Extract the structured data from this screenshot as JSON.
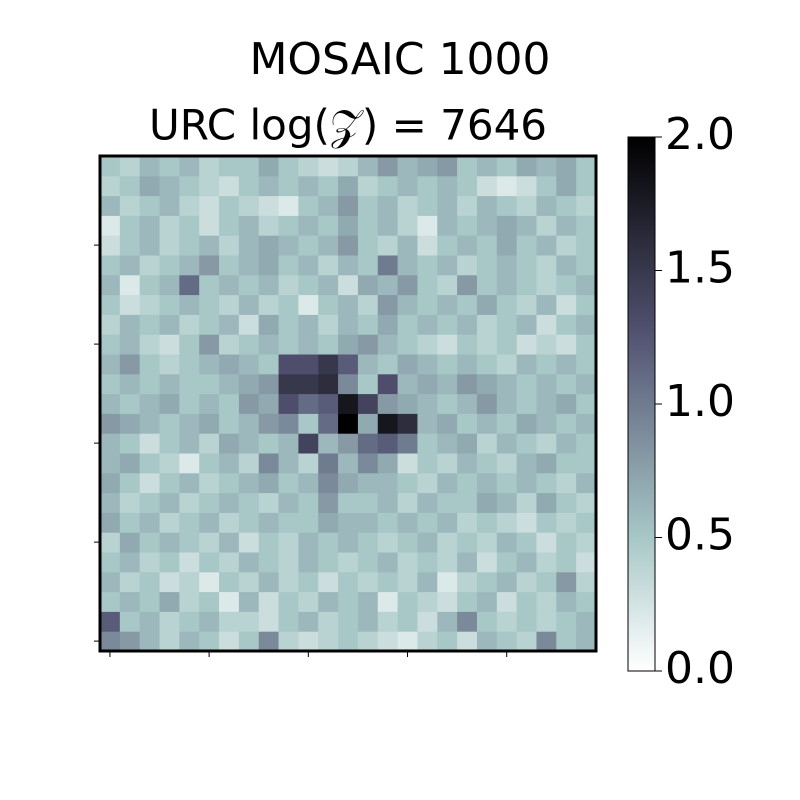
{
  "chart_data": {
    "type": "heatmap",
    "title": "MOSAIC 1000",
    "subtitle": "URC log(𝒵) = 7646",
    "colormap": "bone_r",
    "origin": "lower",
    "xlim": [
      -0.5,
      24.5
    ],
    "ylim": [
      -0.5,
      24.5
    ],
    "xticks": [
      0,
      5,
      10,
      15,
      20
    ],
    "yticks": [
      0,
      5,
      10,
      15,
      20
    ],
    "clim": [
      0,
      2
    ],
    "cticks": [
      {
        "value": 0,
        "label": "0.0"
      },
      {
        "value": 0.5,
        "label": "0.5"
      },
      {
        "value": 1,
        "label": "1.0"
      },
      {
        "value": 1.5,
        "label": "1.5"
      },
      {
        "value": 2,
        "label": "2.0"
      }
    ],
    "z": [
      [
        0.9,
        0.8,
        0.6,
        0.4,
        0.6,
        0.5,
        0.3,
        0.5,
        0.9,
        0.4,
        0.3,
        0.4,
        0.5,
        0.4,
        0.3,
        0.2,
        0.4,
        0.5,
        0.3,
        0.6,
        0.5,
        0.4,
        0.9,
        0.5,
        0.6
      ],
      [
        1.2,
        0.5,
        0.6,
        0.4,
        0.5,
        0.6,
        0.4,
        0.4,
        0.3,
        0.5,
        0.6,
        0.4,
        0.5,
        0.6,
        0.4,
        0.5,
        0.3,
        0.6,
        0.9,
        0.5,
        0.4,
        0.5,
        0.4,
        0.5,
        0.6
      ],
      [
        0.5,
        0.6,
        0.5,
        0.7,
        0.4,
        0.5,
        0.2,
        0.6,
        0.3,
        0.5,
        0.4,
        0.6,
        0.5,
        0.6,
        0.2,
        0.5,
        0.4,
        0.3,
        0.5,
        0.6,
        0.3,
        0.5,
        0.4,
        0.6,
        0.5
      ],
      [
        0.6,
        0.4,
        0.5,
        0.3,
        0.4,
        0.2,
        0.5,
        0.4,
        0.6,
        0.4,
        0.5,
        0.3,
        0.5,
        0.4,
        0.5,
        0.4,
        0.6,
        0.2,
        0.4,
        0.5,
        0.6,
        0.4,
        0.5,
        0.8,
        0.4
      ],
      [
        0.5,
        0.6,
        0.4,
        0.5,
        0.3,
        0.5,
        0.4,
        0.6,
        0.5,
        0.4,
        0.6,
        0.5,
        0.4,
        0.5,
        0.6,
        0.4,
        0.5,
        0.4,
        0.6,
        0.3,
        0.5,
        0.6,
        0.4,
        0.5,
        0.3
      ],
      [
        0.4,
        0.7,
        0.5,
        0.6,
        0.5,
        0.4,
        0.6,
        0.3,
        0.5,
        0.4,
        0.6,
        0.5,
        0.6,
        0.5,
        0.4,
        0.5,
        0.6,
        0.4,
        0.5,
        0.4,
        0.6,
        0.5,
        0.3,
        0.5,
        0.4
      ],
      [
        0.7,
        0.5,
        0.6,
        0.4,
        0.5,
        0.6,
        0.4,
        0.5,
        0.6,
        0.5,
        0.5,
        0.7,
        0.6,
        0.6,
        0.5,
        0.6,
        0.5,
        0.6,
        0.4,
        0.5,
        0.4,
        0.3,
        0.5,
        0.4,
        0.5
      ],
      [
        0.6,
        0.4,
        0.5,
        0.6,
        0.4,
        0.5,
        0.6,
        0.5,
        0.4,
        0.6,
        0.5,
        0.8,
        0.5,
        0.5,
        0.6,
        0.4,
        0.6,
        0.5,
        0.5,
        0.7,
        0.6,
        0.4,
        0.7,
        0.5,
        0.4
      ],
      [
        0.7,
        0.5,
        0.3,
        0.5,
        0.6,
        0.4,
        0.5,
        0.6,
        0.7,
        0.5,
        0.6,
        0.9,
        0.7,
        0.6,
        0.6,
        0.5,
        0.4,
        0.6,
        0.5,
        0.6,
        0.5,
        0.6,
        0.5,
        0.4,
        0.6
      ],
      [
        0.6,
        0.7,
        0.5,
        0.4,
        0.2,
        0.5,
        0.6,
        0.4,
        0.9,
        0.6,
        0.4,
        1.0,
        0.6,
        0.9,
        0.7,
        0.3,
        0.5,
        0.4,
        0.6,
        0.5,
        0.4,
        0.6,
        0.7,
        0.5,
        0.5
      ],
      [
        0.6,
        0.5,
        0.3,
        0.5,
        0.6,
        0.4,
        0.7,
        0.6,
        0.5,
        0.6,
        1.4,
        0.6,
        0.8,
        1.1,
        1.2,
        1.0,
        0.5,
        0.6,
        0.7,
        0.4,
        0.6,
        0.5,
        0.4,
        0.6,
        0.5
      ],
      [
        0.8,
        0.7,
        0.6,
        0.5,
        0.6,
        0.7,
        0.5,
        0.6,
        0.8,
        0.9,
        0.5,
        1.1,
        2.0,
        0.7,
        1.8,
        1.6,
        0.6,
        0.7,
        0.5,
        0.6,
        0.5,
        0.7,
        0.6,
        0.5,
        0.6
      ],
      [
        0.6,
        0.5,
        0.6,
        0.7,
        0.5,
        0.6,
        0.5,
        0.8,
        0.7,
        1.3,
        1.1,
        1.2,
        1.8,
        1.4,
        0.8,
        0.7,
        0.6,
        0.5,
        0.6,
        0.8,
        0.6,
        0.5,
        0.6,
        0.7,
        0.5
      ],
      [
        0.5,
        0.6,
        0.5,
        0.6,
        0.5,
        0.5,
        0.6,
        0.7,
        0.8,
        1.5,
        1.5,
        1.6,
        0.9,
        0.5,
        1.3,
        0.6,
        0.7,
        0.6,
        0.8,
        0.7,
        0.6,
        0.5,
        0.6,
        0.5,
        0.6
      ],
      [
        0.6,
        0.8,
        0.5,
        0.4,
        0.5,
        0.6,
        0.7,
        0.6,
        0.5,
        1.3,
        1.3,
        1.5,
        1.2,
        0.6,
        0.5,
        0.7,
        0.6,
        0.5,
        0.6,
        0.5,
        0.4,
        0.6,
        0.5,
        0.6,
        0.5
      ],
      [
        0.5,
        0.6,
        0.4,
        0.3,
        0.5,
        0.8,
        0.4,
        0.5,
        0.6,
        0.5,
        0.6,
        0.5,
        0.7,
        0.8,
        0.6,
        0.5,
        0.4,
        0.3,
        0.5,
        0.4,
        0.5,
        0.3,
        0.4,
        0.3,
        0.5
      ],
      [
        0.4,
        0.6,
        0.5,
        0.6,
        0.4,
        0.5,
        0.6,
        0.3,
        0.7,
        0.5,
        0.6,
        0.4,
        0.6,
        0.5,
        0.7,
        0.5,
        0.6,
        0.5,
        0.6,
        0.4,
        0.5,
        0.6,
        0.3,
        0.5,
        0.6
      ],
      [
        0.5,
        0.3,
        0.4,
        0.5,
        0.6,
        0.5,
        0.4,
        0.6,
        0.4,
        0.5,
        0.2,
        0.5,
        0.6,
        0.4,
        0.8,
        0.6,
        0.5,
        0.6,
        0.5,
        0.7,
        0.5,
        0.4,
        0.6,
        0.3,
        0.5
      ],
      [
        0.6,
        0.2,
        0.5,
        0.6,
        1.1,
        0.5,
        0.6,
        0.5,
        0.6,
        0.4,
        0.5,
        0.6,
        0.3,
        0.7,
        0.6,
        0.8,
        0.5,
        0.4,
        0.8,
        0.5,
        0.6,
        0.5,
        0.4,
        0.5,
        0.6
      ],
      [
        0.5,
        0.6,
        0.4,
        0.5,
        0.6,
        0.8,
        0.5,
        0.6,
        0.7,
        0.5,
        0.6,
        0.4,
        0.6,
        0.5,
        1.0,
        0.6,
        0.5,
        0.6,
        0.4,
        0.5,
        0.6,
        0.5,
        0.4,
        0.6,
        0.5
      ],
      [
        0.3,
        0.5,
        0.6,
        0.4,
        0.5,
        0.6,
        0.4,
        0.6,
        0.7,
        0.6,
        0.5,
        0.6,
        0.8,
        0.5,
        0.4,
        0.6,
        0.3,
        0.5,
        0.6,
        0.5,
        0.7,
        0.5,
        0.6,
        0.4,
        0.5
      ],
      [
        0.2,
        0.5,
        0.6,
        0.4,
        0.5,
        0.3,
        0.5,
        0.6,
        0.4,
        0.5,
        0.6,
        0.5,
        0.7,
        0.5,
        0.6,
        0.4,
        0.2,
        0.6,
        0.5,
        0.6,
        0.7,
        0.6,
        0.4,
        0.6,
        0.5
      ],
      [
        0.6,
        0.4,
        0.5,
        0.6,
        0.4,
        0.3,
        0.5,
        0.4,
        0.3,
        0.2,
        0.5,
        0.6,
        0.8,
        0.5,
        0.6,
        0.4,
        0.5,
        0.6,
        0.4,
        0.6,
        0.5,
        0.4,
        0.6,
        0.5,
        0.4
      ],
      [
        0.4,
        0.5,
        0.7,
        0.6,
        0.5,
        0.4,
        0.3,
        0.5,
        0.6,
        0.5,
        0.6,
        0.5,
        0.7,
        0.4,
        0.5,
        0.6,
        0.5,
        0.6,
        0.5,
        0.3,
        0.2,
        0.3,
        0.5,
        0.7,
        0.5
      ],
      [
        0.5,
        0.4,
        0.6,
        0.5,
        0.6,
        0.4,
        0.5,
        0.5,
        0.7,
        0.5,
        0.4,
        0.3,
        0.4,
        0.6,
        0.8,
        0.6,
        0.7,
        0.8,
        0.5,
        0.6,
        0.5,
        0.7,
        0.6,
        0.7,
        0.5
      ]
    ]
  }
}
